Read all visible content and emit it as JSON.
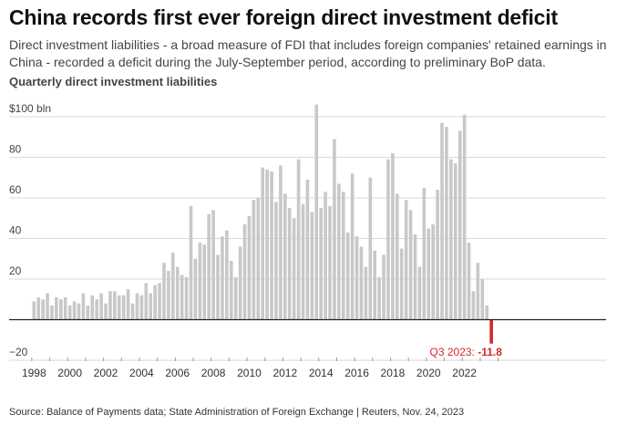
{
  "header": {
    "title": "China records first ever foreign direct investment deficit",
    "subtitle": "Direct investment liabilities - a broad measure of FDI that includes foreign companies' retained earnings in China - recorded a deficit during the July-September period, according to preliminary BoP data.",
    "chart_label": "Quarterly direct investment liabilities"
  },
  "footer": {
    "source": "Source: Balance of Payments data; State Administration of Foreign Exchange | Reuters, Nov. 24, 2023"
  },
  "colors": {
    "bar": "#c8c8c8",
    "highlight": "#d62828",
    "grid": "#d9d9d9",
    "axis": "#222222"
  },
  "chart_data": {
    "type": "bar",
    "title": "Quarterly direct investment liabilities",
    "ylabel": "$ bln",
    "ylim": [
      -20,
      106
    ],
    "yticks": [
      -20,
      0,
      20,
      40,
      60,
      80,
      100
    ],
    "ytick_labels": [
      "−20",
      "",
      "20",
      "40",
      "60",
      "80",
      "$100 bln"
    ],
    "xtick_labels": [
      "1998",
      "2000",
      "2002",
      "2004",
      "2006",
      "2008",
      "2010",
      "2012",
      "2014",
      "2016",
      "2018",
      "2020",
      "2022"
    ],
    "start_year": 1998,
    "grid": true,
    "annotation": {
      "label": "Q3 2023: ",
      "value": "-11.8",
      "index": 102
    },
    "values": [
      9,
      11,
      10,
      13,
      7,
      11,
      10,
      11,
      7,
      9,
      8,
      13,
      7,
      12,
      10,
      13,
      8,
      14,
      14,
      12,
      12,
      15,
      8,
      13,
      12,
      18,
      13,
      17,
      18,
      28,
      24,
      33,
      26,
      22,
      21,
      56,
      30,
      38,
      37,
      52,
      54,
      32,
      41,
      44,
      29,
      21,
      36,
      47,
      51,
      59,
      60,
      75,
      74,
      73,
      58,
      76,
      62,
      55,
      50,
      79,
      57,
      69,
      53,
      106,
      55,
      63,
      56,
      89,
      67,
      63,
      43,
      72,
      41,
      36,
      26,
      70,
      34,
      21,
      32,
      79,
      82,
      62,
      35,
      59,
      54,
      42,
      26,
      65,
      45,
      47,
      64,
      97,
      95,
      79,
      77,
      93,
      101,
      38,
      14,
      28,
      20,
      7,
      -11.8
    ]
  }
}
